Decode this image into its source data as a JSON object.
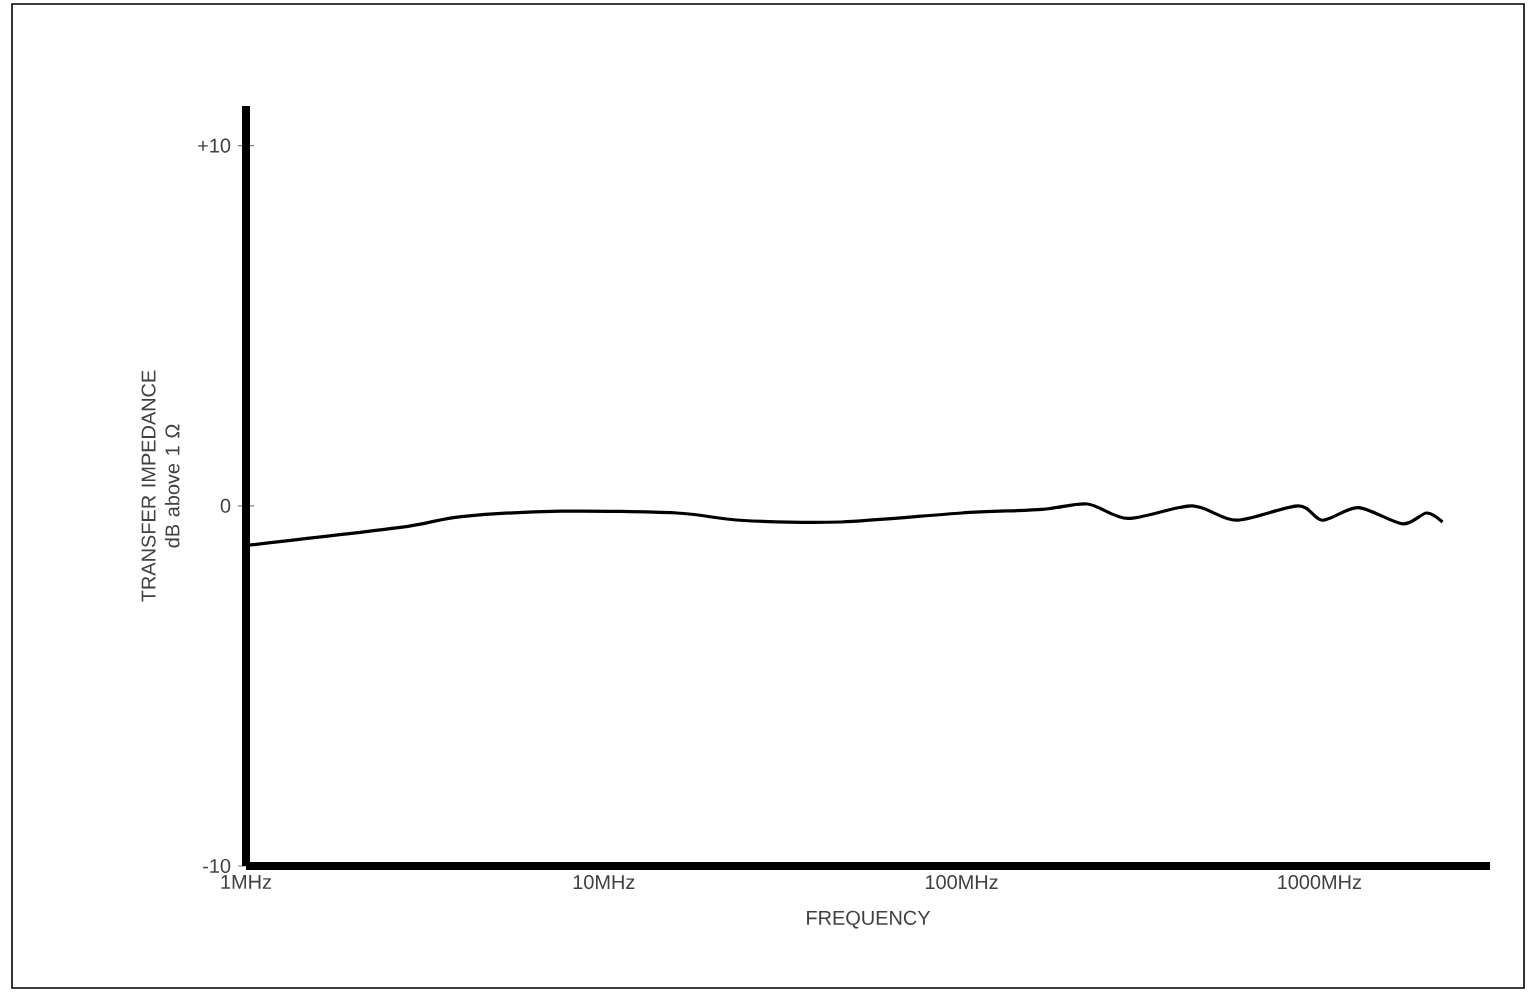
{
  "chart_data": {
    "type": "line",
    "xlabel": "FREQUENCY",
    "ylabel": "TRANSFER IMPEDANCE dB above 1 Ω",
    "log": "x",
    "xlim": [
      1,
      3000
    ],
    "ylim": [
      -10,
      11.1
    ],
    "xticks": [
      {
        "value": 1,
        "label": "1MHz"
      },
      {
        "value": 10,
        "label": "10MHz"
      },
      {
        "value": 100,
        "label": "100MHz"
      },
      {
        "value": 1000,
        "label": "1000MHz"
      }
    ],
    "yticks": [
      {
        "value": -10,
        "label": "-10"
      },
      0,
      {
        "value": 10,
        "label": "+10"
      }
    ],
    "series": [
      {
        "color": "#000000",
        "x": [
          1,
          2.7,
          4,
          7.6,
          16,
          24,
          46,
          100,
          168,
          225,
          292,
          441,
          586,
          873,
          1020,
          1285,
          1710,
          1995,
          2210
        ],
        "values": [
          -1.1,
          -0.6,
          -0.3,
          -0.15,
          -0.2,
          -0.4,
          -0.45,
          -0.2,
          -0.1,
          0.05,
          -0.35,
          0,
          -0.4,
          0,
          -0.4,
          -0.05,
          -0.5,
          -0.2,
          -0.45
        ]
      }
    ]
  }
}
